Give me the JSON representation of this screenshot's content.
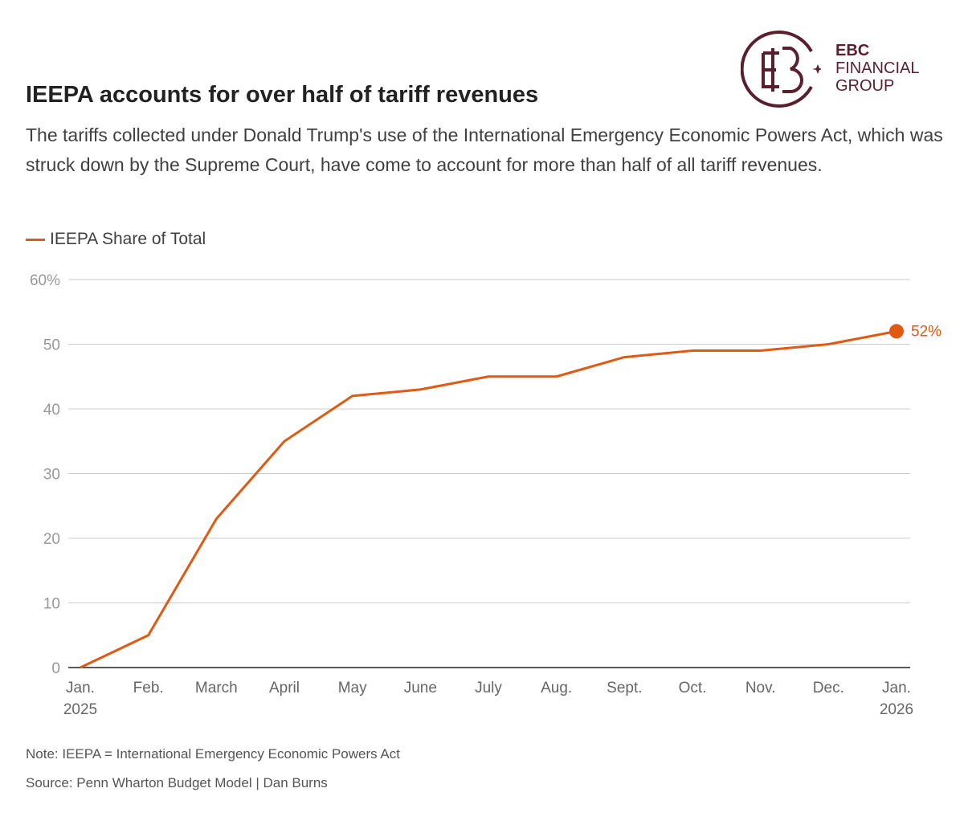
{
  "header": {
    "title": "IEEPA accounts for over half of tariff revenues",
    "subtitle": "The tariffs collected under Donald Trump's use of the International Emergency Economic Powers Act, which was struck down by the Supreme Court, have come to account for more than half of all tariff revenues."
  },
  "logo": {
    "line1": "EBC",
    "line2": "FINANCIAL",
    "line3": "GROUP",
    "color": "#5a1f2e"
  },
  "footer": {
    "note": "Note: IEEPA = International Emergency Economic Powers Act",
    "source": "Source: Penn Wharton Budget Model | Dan Burns"
  },
  "chart_data": {
    "type": "line",
    "title": "IEEPA accounts for over half of tariff revenues",
    "xlabel": "",
    "ylabel": "",
    "ylim": [
      0,
      60
    ],
    "yticks": [
      0,
      10,
      20,
      30,
      40,
      50,
      60
    ],
    "ytick_labels": [
      "0",
      "10",
      "20",
      "30",
      "40",
      "50",
      "60%"
    ],
    "categories": [
      "Jan. 2025",
      "Feb.",
      "March",
      "April",
      "May",
      "June",
      "July",
      "Aug.",
      "Sept.",
      "Oct.",
      "Nov.",
      "Dec.",
      "Jan. 2026"
    ],
    "xtick_labels": [
      [
        "Jan.",
        "2025"
      ],
      [
        "Feb."
      ],
      [
        "March"
      ],
      [
        "April"
      ],
      [
        "May"
      ],
      [
        "June"
      ],
      [
        "July"
      ],
      [
        "Aug."
      ],
      [
        "Sept."
      ],
      [
        "Oct."
      ],
      [
        "Nov."
      ],
      [
        "Dec."
      ],
      [
        "Jan.",
        "2026"
      ]
    ],
    "grid": true,
    "legend": "top-left",
    "series": [
      {
        "name": "IEEPA Share of Total",
        "color": "#e05a14",
        "values": [
          0,
          5,
          23,
          35,
          42,
          43,
          45,
          45,
          48,
          49,
          49,
          50,
          52
        ]
      }
    ],
    "annotations": [
      {
        "label": "52%",
        "x": "Jan. 2026",
        "y": 52
      }
    ]
  }
}
